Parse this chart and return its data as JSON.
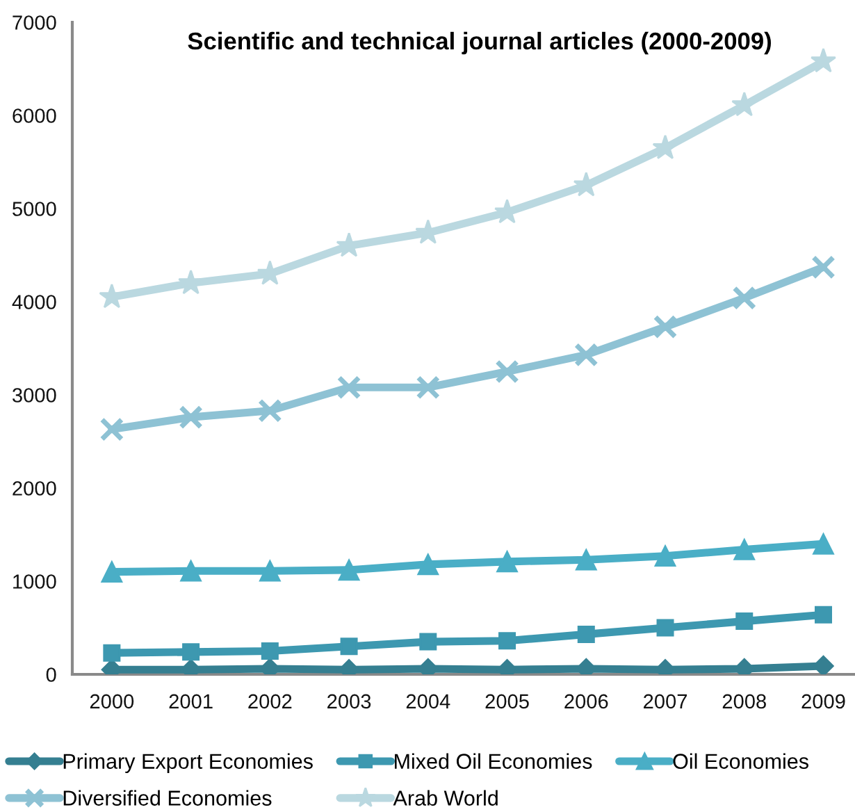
{
  "chart_data": {
    "type": "line",
    "title": "Scientific and technical journal articles (2000-2009)",
    "categories": [
      "2000",
      "2001",
      "2002",
      "2003",
      "2004",
      "2005",
      "2006",
      "2007",
      "2008",
      "2009"
    ],
    "ylim": [
      0,
      7000
    ],
    "yticks": [
      0,
      1000,
      2000,
      3000,
      4000,
      5000,
      6000,
      7000
    ],
    "legend": "bottom",
    "line_style": "solid",
    "series": [
      {
        "name": "Primary Export Economies",
        "color": "#357f91",
        "marker": "diamond",
        "values": [
          50,
          50,
          60,
          50,
          60,
          50,
          60,
          50,
          60,
          90
        ]
      },
      {
        "name": "Mixed Oil Economies",
        "color": "#3d98b0",
        "marker": "square",
        "values": [
          230,
          240,
          250,
          300,
          350,
          360,
          430,
          500,
          570,
          640
        ]
      },
      {
        "name": "Oil Economies",
        "color": "#4aaec6",
        "marker": "triangle",
        "values": [
          1100,
          1110,
          1110,
          1120,
          1180,
          1210,
          1230,
          1270,
          1340,
          1400
        ]
      },
      {
        "name": "Diversified Economies",
        "color": "#8ec2d4",
        "marker": "cross",
        "values": [
          2630,
          2760,
          2830,
          3080,
          3080,
          3250,
          3430,
          3730,
          4040,
          4370
        ]
      },
      {
        "name": "Arab World",
        "color": "#bad8e0",
        "marker": "star",
        "values": [
          4050,
          4200,
          4300,
          4600,
          4740,
          4960,
          5250,
          5650,
          6110,
          6580
        ]
      }
    ]
  }
}
